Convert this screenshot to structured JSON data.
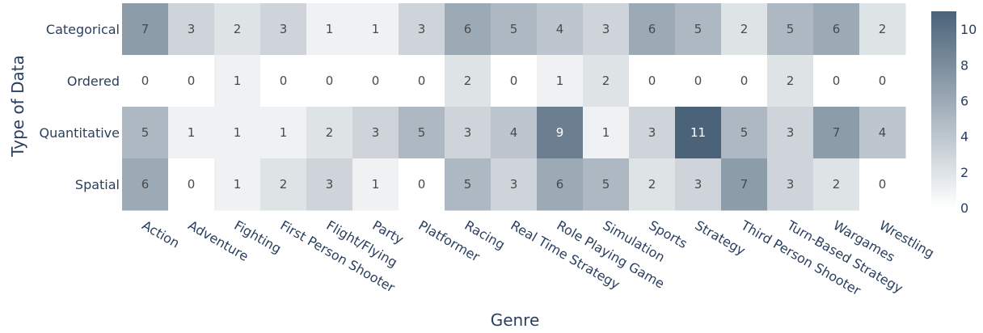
{
  "chart_data": {
    "type": "heatmap",
    "xlabel": "Genre",
    "ylabel": "Type of Data",
    "x_categories": [
      "Action",
      "Adventure",
      "Fighting",
      "First Person Shooter",
      "Flight/Flying",
      "Party",
      "Platformer",
      "Racing",
      "Real Time Strategy",
      "Role Playing Game",
      "Simulation",
      "Sports",
      "Strategy",
      "Third Person Shooter",
      "Turn-Based Strategy",
      "Wargames",
      "Wrestling"
    ],
    "y_categories": [
      "Categorical",
      "Ordered",
      "Quantitative",
      "Spatial"
    ],
    "values": [
      [
        7,
        3,
        2,
        3,
        1,
        1,
        3,
        6,
        5,
        4,
        3,
        6,
        5,
        2,
        5,
        6,
        2
      ],
      [
        0,
        0,
        1,
        0,
        0,
        0,
        0,
        2,
        0,
        1,
        2,
        0,
        0,
        0,
        2,
        0,
        0
      ],
      [
        5,
        1,
        1,
        1,
        2,
        3,
        5,
        3,
        4,
        9,
        1,
        3,
        11,
        5,
        3,
        7,
        4
      ],
      [
        6,
        0,
        1,
        2,
        3,
        1,
        0,
        5,
        3,
        6,
        5,
        2,
        3,
        7,
        3,
        2,
        0
      ]
    ],
    "zmin": 0,
    "zmax": 11,
    "colorbar_ticks": [
      0,
      2,
      4,
      6,
      8,
      10
    ],
    "colorscale": {
      "low": "#ffffff",
      "high": "#4a6378"
    },
    "grid": false,
    "colorbar_position": "right"
  }
}
